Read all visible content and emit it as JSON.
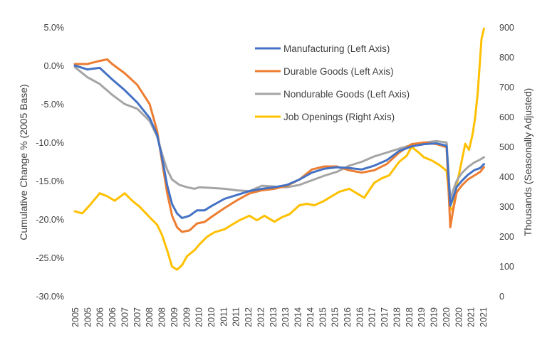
{
  "chart_data": {
    "type": "line",
    "title": "",
    "ylabel_left": "Cumulative Change % (2005 Base)",
    "ylabel_right": "Thousands (Seasonally Adjusted)",
    "xlabel": "",
    "ylim_left": [
      -30,
      5
    ],
    "ylim_right": [
      0,
      900
    ],
    "y_ticks_left": [
      "5.0%",
      "0.0%",
      "-5.0%",
      "-10.0%",
      "-15.0%",
      "-20.0%",
      "-25.0%",
      "-30.0%"
    ],
    "y_ticks_right": [
      "900",
      "800",
      "700",
      "600",
      "500",
      "400",
      "300",
      "200",
      "100",
      "0"
    ],
    "x_ticks": [
      "2005",
      "2005",
      "2006",
      "2006",
      "2007",
      "2007",
      "2008",
      "2008",
      "2009",
      "2009",
      "2010",
      "2010",
      "2011",
      "2011",
      "2012",
      "2012",
      "2013",
      "2013",
      "2014",
      "2014",
      "2015",
      "2015",
      "2016",
      "2016",
      "2017",
      "2017",
      "2018",
      "2018",
      "2019",
      "2019",
      "2020",
      "2020",
      "2021",
      "2021"
    ],
    "x_range": [
      2005.0,
      2021.5
    ],
    "grid": false,
    "legend_position": "top-right",
    "colors": {
      "manufacturing": "#4472C4",
      "durable": "#ED7D31",
      "nondurable": "#A5A5A5",
      "openings": "#FFC000"
    },
    "series": [
      {
        "name": "Manufacturing (Left Axis)",
        "axis": "left",
        "color": "#4472C4",
        "x": [
          2005.0,
          2005.5,
          2006.0,
          2006.5,
          2007.0,
          2007.5,
          2008.0,
          2008.3,
          2008.5,
          2008.7,
          2008.9,
          2009.1,
          2009.3,
          2009.6,
          2009.9,
          2010.2,
          2010.5,
          2011.0,
          2011.5,
          2012.0,
          2012.5,
          2013.0,
          2013.5,
          2014.0,
          2014.5,
          2015.0,
          2015.5,
          2016.0,
          2016.5,
          2017.0,
          2017.5,
          2018.0,
          2018.5,
          2019.0,
          2019.5,
          2019.9,
          2020.05,
          2020.15,
          2020.3,
          2020.5,
          2020.75,
          2021.0,
          2021.25,
          2021.4
        ],
        "y": [
          0.0,
          -0.5,
          -0.3,
          -1.8,
          -3.2,
          -4.8,
          -6.8,
          -9.0,
          -12.0,
          -15.5,
          -18.0,
          -19.2,
          -19.8,
          -19.5,
          -18.8,
          -18.8,
          -18.2,
          -17.3,
          -16.8,
          -16.3,
          -16.0,
          -15.8,
          -15.5,
          -14.8,
          -13.9,
          -13.4,
          -13.2,
          -13.3,
          -13.5,
          -13.0,
          -12.3,
          -11.1,
          -10.5,
          -10.2,
          -10.1,
          -10.4,
          -18.2,
          -17.3,
          -15.8,
          -15.0,
          -14.2,
          -13.6,
          -13.3,
          -12.8
        ]
      },
      {
        "name": "Durable Goods (Left Axis)",
        "axis": "left",
        "color": "#ED7D31",
        "x": [
          2005.0,
          2005.5,
          2006.0,
          2006.3,
          2006.5,
          2007.0,
          2007.5,
          2008.0,
          2008.3,
          2008.5,
          2008.7,
          2008.9,
          2009.1,
          2009.3,
          2009.6,
          2009.9,
          2010.2,
          2010.5,
          2011.0,
          2011.5,
          2012.0,
          2012.5,
          2013.0,
          2013.5,
          2014.0,
          2014.5,
          2015.0,
          2015.5,
          2016.0,
          2016.5,
          2017.0,
          2017.5,
          2018.0,
          2018.5,
          2019.0,
          2019.5,
          2019.9,
          2020.05,
          2020.15,
          2020.3,
          2020.5,
          2020.75,
          2021.0,
          2021.25,
          2021.4
        ],
        "y": [
          0.2,
          0.2,
          0.6,
          0.8,
          0.2,
          -1.0,
          -2.5,
          -5.0,
          -8.5,
          -12.5,
          -16.5,
          -19.5,
          -21.0,
          -21.6,
          -21.4,
          -20.5,
          -20.3,
          -19.6,
          -18.5,
          -17.5,
          -16.6,
          -16.2,
          -16.0,
          -15.6,
          -14.8,
          -13.5,
          -13.1,
          -13.1,
          -13.6,
          -13.9,
          -13.6,
          -12.8,
          -11.3,
          -10.2,
          -10.0,
          -10.2,
          -10.6,
          -21.0,
          -19.0,
          -16.5,
          -15.6,
          -14.8,
          -14.3,
          -13.8,
          -13.2
        ]
      },
      {
        "name": "Nondurable Goods (Left Axis)",
        "axis": "left",
        "color": "#A5A5A5",
        "x": [
          2005.0,
          2005.5,
          2006.0,
          2006.5,
          2007.0,
          2007.5,
          2008.0,
          2008.3,
          2008.5,
          2008.7,
          2008.9,
          2009.2,
          2009.5,
          2009.8,
          2010.0,
          2010.5,
          2011.0,
          2011.5,
          2012.0,
          2012.5,
          2013.0,
          2013.5,
          2014.0,
          2014.5,
          2015.0,
          2015.5,
          2016.0,
          2016.5,
          2017.0,
          2017.5,
          2018.0,
          2018.5,
          2019.0,
          2019.5,
          2019.9,
          2020.05,
          2020.15,
          2020.3,
          2020.5,
          2020.75,
          2021.0,
          2021.25,
          2021.4
        ],
        "y": [
          -0.2,
          -1.5,
          -2.4,
          -3.8,
          -5.0,
          -5.6,
          -7.2,
          -9.2,
          -11.5,
          -13.5,
          -14.8,
          -15.5,
          -15.8,
          -16.0,
          -15.8,
          -15.9,
          -16.0,
          -16.2,
          -16.3,
          -15.6,
          -15.7,
          -15.8,
          -15.5,
          -14.9,
          -14.3,
          -13.8,
          -13.0,
          -12.5,
          -11.8,
          -11.3,
          -10.8,
          -10.3,
          -10.0,
          -9.8,
          -10.0,
          -17.5,
          -16.3,
          -15.0,
          -14.0,
          -13.2,
          -12.6,
          -12.2,
          -11.9
        ]
      },
      {
        "name": "Job Openings (Right Axis)",
        "axis": "right",
        "color": "#FFC000",
        "x": [
          2005.0,
          2005.3,
          2005.6,
          2006.0,
          2006.3,
          2006.6,
          2007.0,
          2007.3,
          2007.6,
          2008.0,
          2008.3,
          2008.5,
          2008.7,
          2008.9,
          2009.1,
          2009.3,
          2009.5,
          2009.8,
          2010.0,
          2010.3,
          2010.6,
          2011.0,
          2011.3,
          2011.6,
          2012.0,
          2012.3,
          2012.6,
          2013.0,
          2013.3,
          2013.6,
          2014.0,
          2014.3,
          2014.6,
          2015.0,
          2015.3,
          2015.6,
          2016.0,
          2016.3,
          2016.6,
          2017.0,
          2017.3,
          2017.6,
          2018.0,
          2018.3,
          2018.5,
          2018.8,
          2019.0,
          2019.3,
          2019.6,
          2019.9,
          2020.05,
          2020.15,
          2020.3,
          2020.5,
          2020.65,
          2020.8,
          2020.95,
          2021.05,
          2021.15,
          2021.3,
          2021.4
        ],
        "y": [
          285,
          278,
          305,
          345,
          335,
          320,
          345,
          320,
          300,
          265,
          240,
          205,
          155,
          100,
          90,
          105,
          135,
          155,
          175,
          200,
          215,
          225,
          240,
          255,
          270,
          255,
          270,
          250,
          265,
          275,
          305,
          310,
          305,
          320,
          335,
          350,
          360,
          345,
          330,
          380,
          395,
          405,
          450,
          470,
          500,
          480,
          465,
          455,
          440,
          420,
          300,
          285,
          370,
          450,
          510,
          490,
          545,
          600,
          680,
          860,
          895
        ]
      }
    ]
  }
}
